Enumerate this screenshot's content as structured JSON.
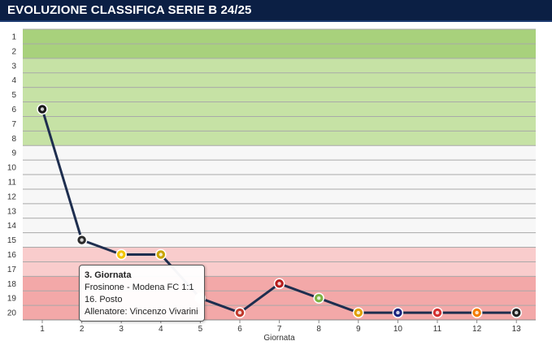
{
  "header": {
    "title": "EVOLUZIONE CLASSIFICA SERIE B 24/25"
  },
  "chart_data": {
    "type": "line",
    "title": "EVOLUZIONE CLASSIFICA SERIE B 24/25",
    "xlabel": "Giornata",
    "ylabel": "",
    "x": [
      1,
      2,
      3,
      4,
      5,
      6,
      7,
      8,
      9,
      10,
      11,
      12,
      13
    ],
    "y_ticks": [
      1,
      2,
      3,
      4,
      5,
      6,
      7,
      8,
      9,
      10,
      11,
      12,
      13,
      14,
      15,
      16,
      17,
      18,
      19,
      20
    ],
    "ylim": [
      1,
      20
    ],
    "y_inverted": true,
    "grid": true,
    "series": [
      {
        "values": [
          6,
          15,
          16,
          16,
          19,
          20,
          18,
          19,
          20,
          20,
          20,
          20,
          20
        ]
      }
    ],
    "bands": [
      {
        "from": 1,
        "to": 2,
        "color": "#a8d17c"
      },
      {
        "from": 3,
        "to": 8,
        "color": "#c6e2a5"
      },
      {
        "from": 9,
        "to": 15,
        "color": "#f7f7f7"
      },
      {
        "from": 16,
        "to": 17,
        "color": "#f9cccc"
      },
      {
        "from": 18,
        "to": 20,
        "color": "#f3a8a8"
      }
    ],
    "colors": {
      "line": "#1e2e4f",
      "grid": "#a9a9a9"
    }
  },
  "tooltip": {
    "heading": "3. Giornata",
    "match": "Frosinone - Modena FC 1:1",
    "position": "16. Posto",
    "coach": "Allenatore: Vincenzo Vivarini"
  }
}
